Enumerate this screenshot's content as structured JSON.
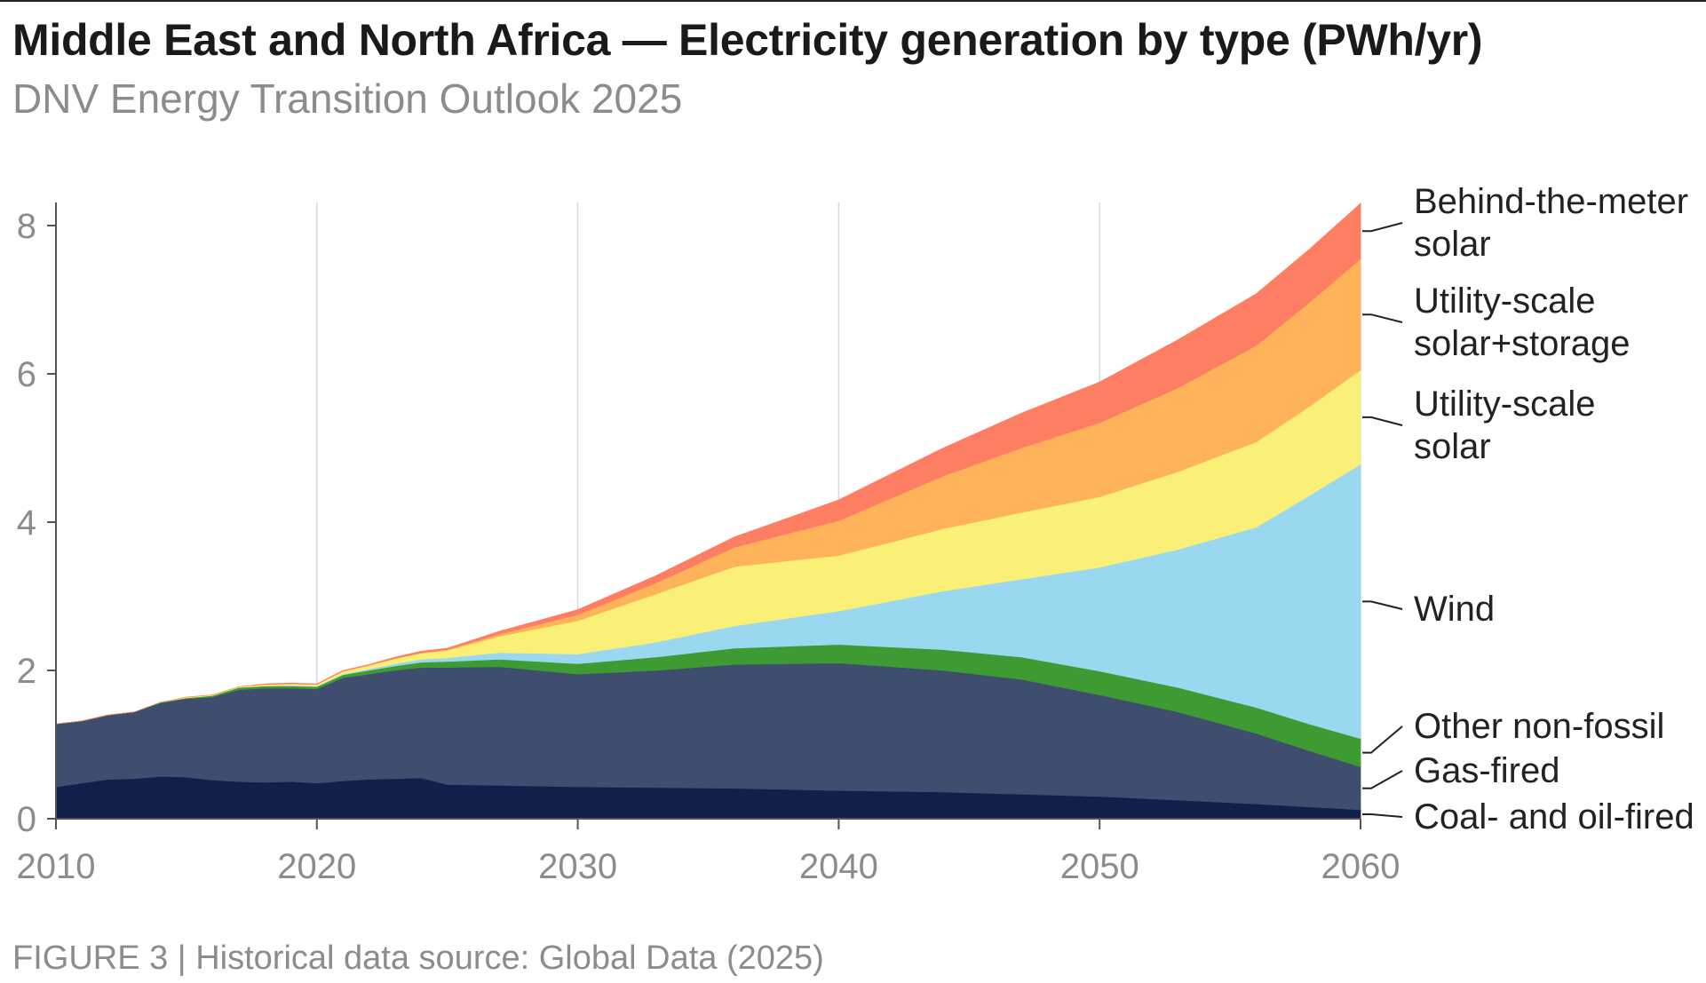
{
  "header": {
    "title": "Middle East and North Africa — Electricity generation by type (PWh/yr)",
    "subtitle": "DNV Energy Transition Outlook 2025"
  },
  "footer": {
    "caption": "FIGURE 3 | Historical data source: Global Data (2025)"
  },
  "chart_data": {
    "type": "area",
    "stacked": true,
    "title": "Middle East and North Africa — Electricity generation by type (PWh/yr)",
    "xlabel": "",
    "ylabel": "PWh/yr",
    "xlim": [
      2010,
      2060
    ],
    "ylim": [
      0,
      8.3
    ],
    "xticks": [
      2010,
      2020,
      2030,
      2040,
      2050,
      2060
    ],
    "yticks": [
      0,
      2,
      4,
      6,
      8
    ],
    "vertical_gridlines": true,
    "x": [
      2010,
      2011,
      2012,
      2013,
      2014,
      2015,
      2016,
      2017,
      2018,
      2019,
      2020,
      2021,
      2022,
      2023,
      2024,
      2025,
      2027,
      2030,
      2033,
      2036,
      2040,
      2044,
      2047,
      2050,
      2053,
      2056,
      2058,
      2060
    ],
    "series": [
      {
        "name": "Coal- and oil-fired",
        "label": "Coal- and oil-fired",
        "color": "#111f4b",
        "values": [
          0.43,
          0.48,
          0.53,
          0.54,
          0.57,
          0.56,
          0.52,
          0.5,
          0.49,
          0.5,
          0.48,
          0.51,
          0.53,
          0.54,
          0.55,
          0.46,
          0.45,
          0.43,
          0.42,
          0.41,
          0.38,
          0.36,
          0.33,
          0.3,
          0.25,
          0.2,
          0.16,
          0.12
        ]
      },
      {
        "name": "Gas-fired",
        "label": "Gas-fired",
        "color": "#3f4d6e",
        "values": [
          0.85,
          0.84,
          0.87,
          0.9,
          0.99,
          1.06,
          1.12,
          1.24,
          1.27,
          1.26,
          1.27,
          1.39,
          1.42,
          1.46,
          1.49,
          1.58,
          1.6,
          1.52,
          1.58,
          1.67,
          1.72,
          1.64,
          1.55,
          1.37,
          1.19,
          0.95,
          0.76,
          0.58
        ]
      },
      {
        "name": "Other non-fossil",
        "label": "Other non-fossil",
        "color": "#3e9a32",
        "values": [
          0.0,
          0.0,
          0.0,
          0.0,
          0.01,
          0.01,
          0.02,
          0.03,
          0.03,
          0.03,
          0.03,
          0.04,
          0.05,
          0.06,
          0.07,
          0.08,
          0.1,
          0.14,
          0.18,
          0.22,
          0.25,
          0.28,
          0.3,
          0.32,
          0.33,
          0.35,
          0.36,
          0.38
        ]
      },
      {
        "name": "Wind",
        "label": "Wind",
        "color": "#99d8ef",
        "values": [
          0.0,
          0.0,
          0.0,
          0.0,
          0.0,
          0.0,
          0.0,
          0.0,
          0.0,
          0.01,
          0.01,
          0.01,
          0.02,
          0.03,
          0.04,
          0.05,
          0.09,
          0.13,
          0.2,
          0.3,
          0.45,
          0.79,
          1.05,
          1.4,
          1.86,
          2.43,
          3.07,
          3.7
        ]
      },
      {
        "name": "Utility-scale solar",
        "label": "Utility-scale\nsolar",
        "color": "#fbf077",
        "values": [
          0.0,
          0.0,
          0.0,
          0.0,
          0.0,
          0.01,
          0.01,
          0.01,
          0.02,
          0.02,
          0.02,
          0.04,
          0.05,
          0.07,
          0.08,
          0.1,
          0.22,
          0.45,
          0.65,
          0.8,
          0.75,
          0.84,
          0.9,
          0.95,
          1.05,
          1.15,
          1.2,
          1.27
        ]
      },
      {
        "name": "Utility-scale solar+storage",
        "label": "Utility-scale\nsolar+storage",
        "color": "#feb35a",
        "values": [
          0.0,
          0.0,
          0.0,
          0.0,
          0.0,
          0.0,
          0.0,
          0.0,
          0.0,
          0.0,
          0.0,
          0.0,
          0.0,
          0.0,
          0.01,
          0.01,
          0.03,
          0.08,
          0.15,
          0.26,
          0.47,
          0.71,
          0.87,
          1.0,
          1.13,
          1.3,
          1.4,
          1.5
        ]
      },
      {
        "name": "Behind-the-meter solar",
        "label": "Behind-the-meter\nsolar",
        "color": "#fe7e63",
        "values": [
          0.0,
          0.0,
          0.0,
          0.0,
          0.0,
          0.0,
          0.0,
          0.0,
          0.01,
          0.01,
          0.01,
          0.01,
          0.01,
          0.02,
          0.02,
          0.02,
          0.04,
          0.07,
          0.1,
          0.14,
          0.28,
          0.38,
          0.47,
          0.55,
          0.65,
          0.7,
          0.72,
          0.75
        ]
      }
    ]
  }
}
